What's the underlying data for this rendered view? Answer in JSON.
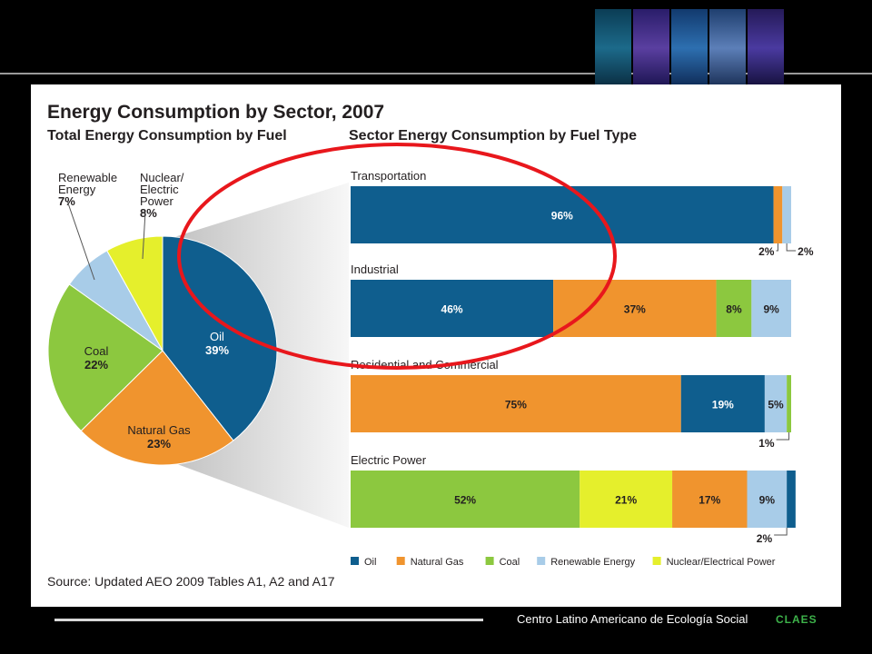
{
  "slide": {
    "title": "Energy Consumption by Sector, 2007",
    "left_subtitle": "Total Energy Consumption by Fuel",
    "right_subtitle": "Sector Energy Consumption by Fuel Type",
    "source": "Source: Updated AEO 2009 Tables A1, A2 and A17"
  },
  "footer": {
    "org_text": "Centro Latino  Americano de Ecología Social",
    "logo_text": "CLAES"
  },
  "colors": {
    "oil": "#0f5e8e",
    "natural_gas": "#f0942e",
    "coal": "#8cc83f",
    "renewable": "#a8cce8",
    "nuclear": "#e5ef2c",
    "highlight_circle": "#e8171c"
  },
  "chart_data": [
    {
      "type": "pie",
      "title": "Total Energy Consumption by Fuel",
      "slices": [
        {
          "key": "oil",
          "label": "Oil",
          "value": 39,
          "text": "39%"
        },
        {
          "key": "natural_gas",
          "label": "Natural Gas",
          "value": 23,
          "text": "23%"
        },
        {
          "key": "coal",
          "label": "Coal",
          "value": 22,
          "text": "22%"
        },
        {
          "key": "renewable",
          "label": "Renewable Energy",
          "value": 7,
          "text": "7%"
        },
        {
          "key": "nuclear",
          "label": "Nuclear/Electric Power",
          "value": 8,
          "text": "8%"
        }
      ]
    },
    {
      "type": "bar",
      "title": "Sector Energy Consumption by Fuel Type",
      "orientation": "horizontal",
      "stacked": true,
      "legend_position": "bottom",
      "legend": [
        {
          "key": "oil",
          "label": "Oil"
        },
        {
          "key": "natural_gas",
          "label": "Natural Gas"
        },
        {
          "key": "coal",
          "label": "Coal"
        },
        {
          "key": "renewable",
          "label": "Renewable Energy"
        },
        {
          "key": "nuclear",
          "label": "Nuclear/Electrical Power"
        }
      ],
      "sectors": [
        {
          "name": "Transportation",
          "segments": [
            {
              "key": "oil",
              "value": 96,
              "text": "96%"
            },
            {
              "key": "natural_gas",
              "value": 2,
              "text": "2%"
            },
            {
              "key": "renewable",
              "value": 2,
              "text": "2%"
            }
          ]
        },
        {
          "name": "Industrial",
          "segments": [
            {
              "key": "oil",
              "value": 46,
              "text": "46%"
            },
            {
              "key": "natural_gas",
              "value": 37,
              "text": "37%"
            },
            {
              "key": "coal",
              "value": 8,
              "text": "8%"
            },
            {
              "key": "renewable",
              "value": 9,
              "text": "9%"
            }
          ]
        },
        {
          "name": "Residential and Commercial",
          "segments": [
            {
              "key": "natural_gas",
              "value": 75,
              "text": "75%"
            },
            {
              "key": "oil",
              "value": 19,
              "text": "19%"
            },
            {
              "key": "renewable",
              "value": 5,
              "text": "5%"
            },
            {
              "key": "coal",
              "value": 1,
              "text": "1%"
            }
          ]
        },
        {
          "name": "Electric Power",
          "segments": [
            {
              "key": "coal",
              "value": 52,
              "text": "52%"
            },
            {
              "key": "nuclear",
              "value": 21,
              "text": "21%"
            },
            {
              "key": "natural_gas",
              "value": 17,
              "text": "17%"
            },
            {
              "key": "renewable",
              "value": 9,
              "text": "9%"
            },
            {
              "key": "oil",
              "value": 2,
              "text": "2%"
            }
          ]
        }
      ]
    }
  ]
}
